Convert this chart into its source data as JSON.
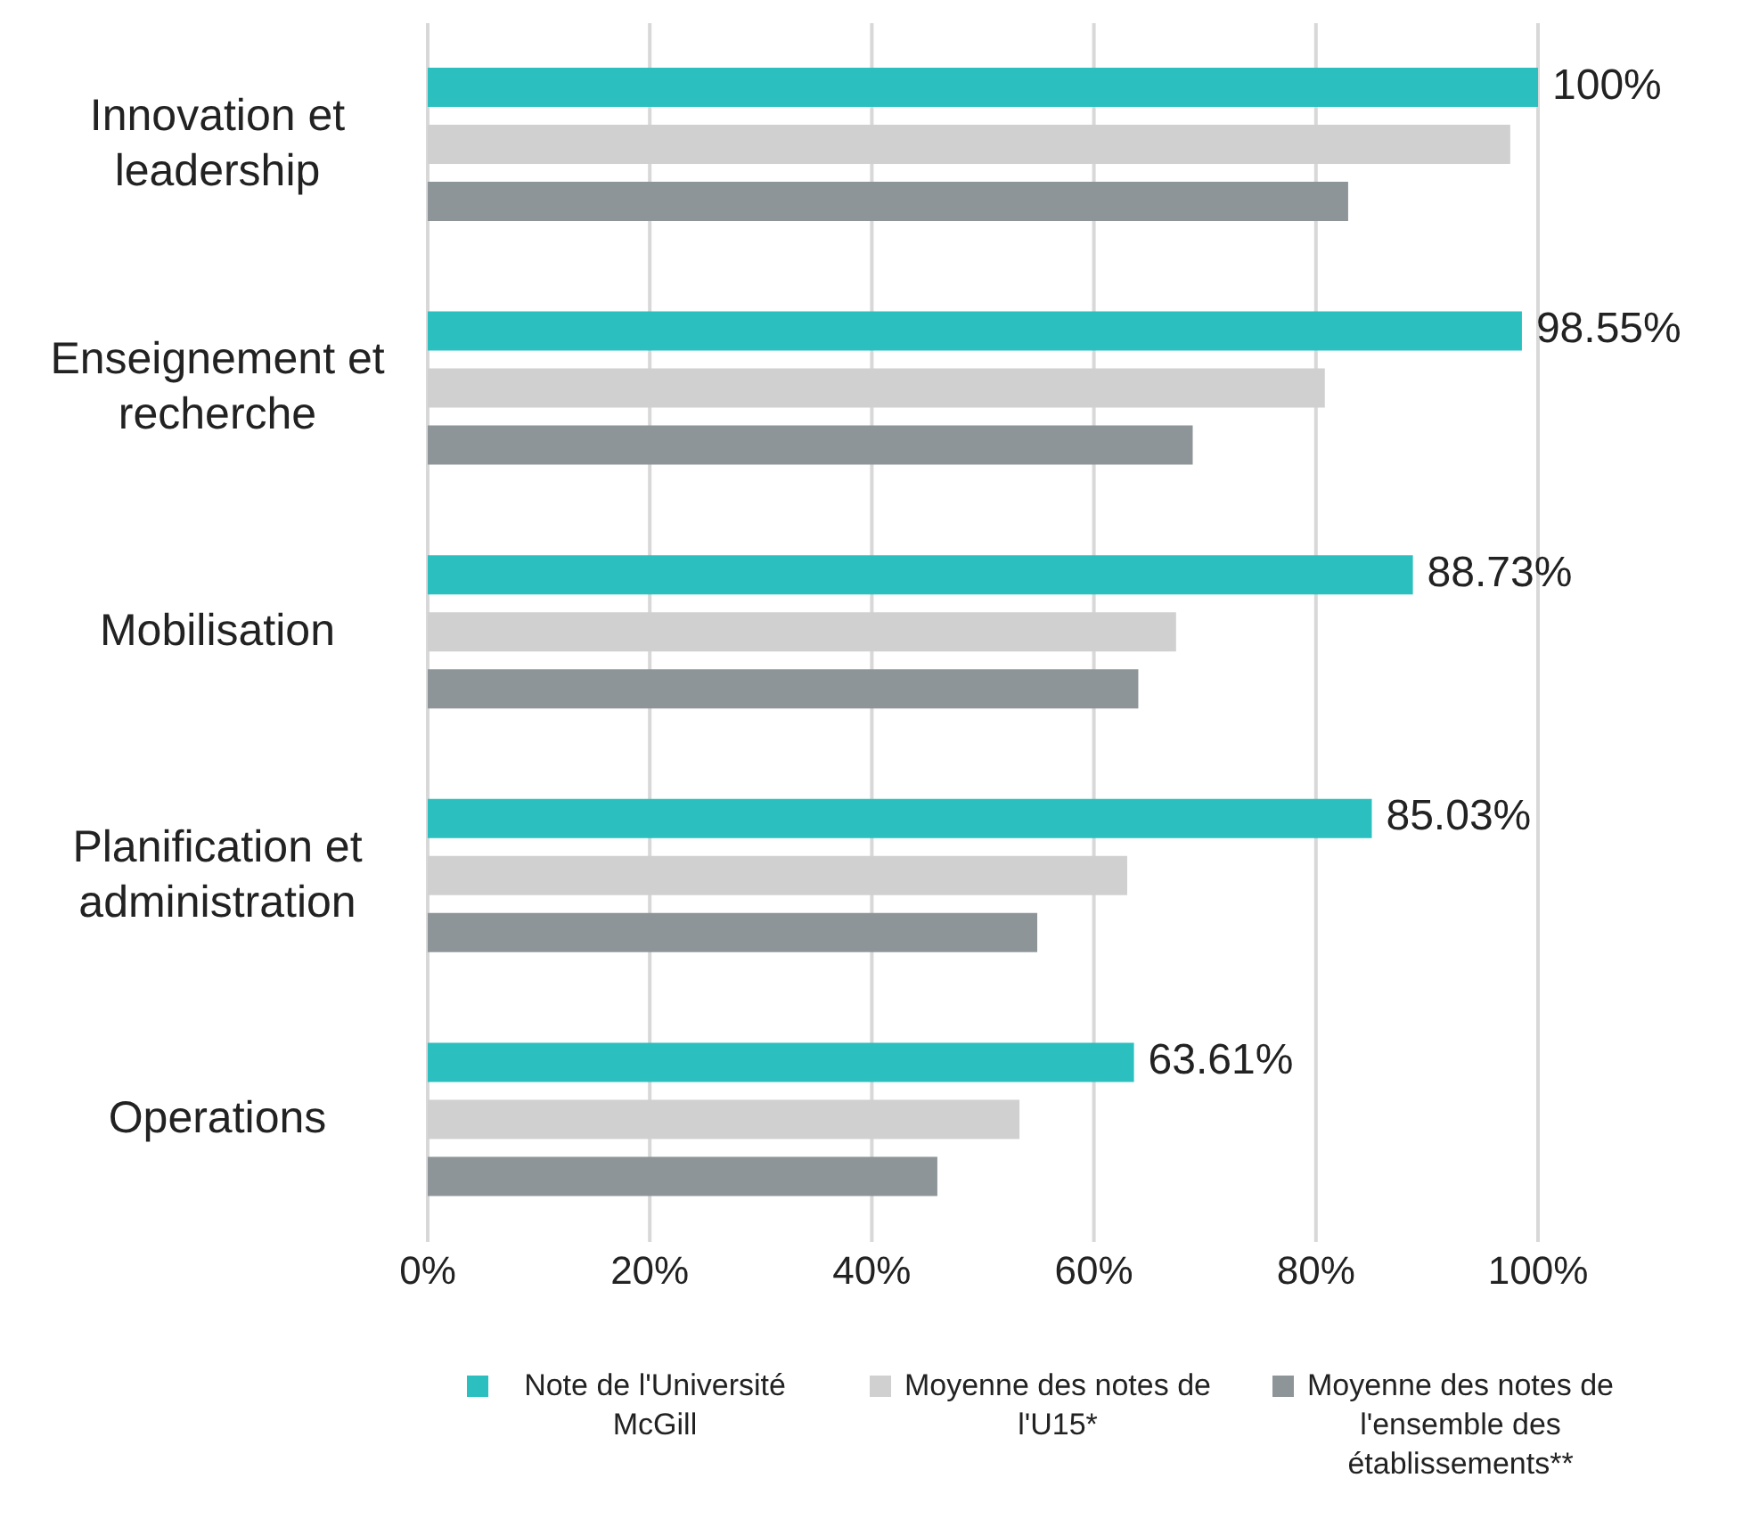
{
  "chart_data": {
    "type": "bar",
    "orientation": "horizontal",
    "categories": [
      "Innovation et leadership",
      "Enseignement et recherche",
      "Mobilisation",
      "Planification et administration",
      "Operations"
    ],
    "series": [
      {
        "name": "Note de l'Université McGill",
        "color": "#2bbfbf",
        "values": [
          100,
          98.55,
          88.73,
          85.03,
          63.61
        ],
        "value_labels": [
          "100%",
          "98.55%",
          "88.73%",
          "85.03%",
          "63.61%"
        ]
      },
      {
        "name": "Moyenne des notes de l'U15*",
        "color": "#d1d0d0",
        "values": [
          97.5,
          80.8,
          67.4,
          63.0,
          53.3
        ]
      },
      {
        "name": "Moyenne des notes de l'ensemble des établissements**",
        "color": "#8e9598",
        "values": [
          82.9,
          68.9,
          64.0,
          54.9,
          45.9
        ]
      }
    ],
    "xlim": [
      0,
      100
    ],
    "xticks": [
      {
        "value": 0,
        "label": "0%"
      },
      {
        "value": 20,
        "label": "20%"
      },
      {
        "value": 40,
        "label": "40%"
      },
      {
        "value": 60,
        "label": "60%"
      },
      {
        "value": 80,
        "label": "80%"
      },
      {
        "value": 100,
        "label": "100%"
      }
    ],
    "grid": "x",
    "legend": "bottom"
  }
}
